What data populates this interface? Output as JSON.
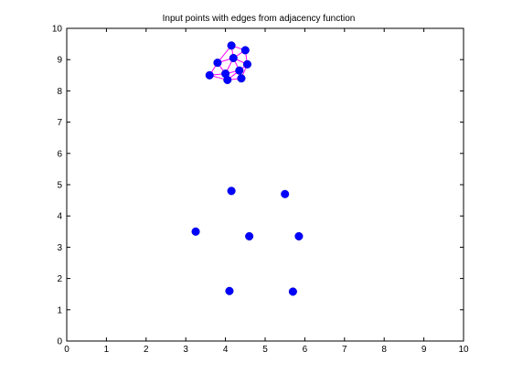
{
  "chart_data": {
    "type": "scatter",
    "title": "Input points with edges from adjacency function",
    "xlabel": "",
    "ylabel": "",
    "xlim": [
      0,
      10
    ],
    "ylim": [
      0,
      10
    ],
    "xticks": [
      0,
      1,
      2,
      3,
      4,
      5,
      6,
      7,
      8,
      9,
      10
    ],
    "yticks": [
      0,
      1,
      2,
      3,
      4,
      5,
      6,
      7,
      8,
      9,
      10
    ],
    "grid": false,
    "legend": "none",
    "point_color": "#0000ff",
    "edge_color": "#ff00ff",
    "points": [
      {
        "x": 3.6,
        "y": 8.5
      },
      {
        "x": 3.8,
        "y": 8.9
      },
      {
        "x": 4.0,
        "y": 8.55
      },
      {
        "x": 4.05,
        "y": 8.35
      },
      {
        "x": 4.15,
        "y": 9.45
      },
      {
        "x": 4.2,
        "y": 9.05
      },
      {
        "x": 4.35,
        "y": 8.65
      },
      {
        "x": 4.4,
        "y": 8.4
      },
      {
        "x": 4.5,
        "y": 9.3
      },
      {
        "x": 4.55,
        "y": 8.85
      },
      {
        "x": 4.15,
        "y": 4.8
      },
      {
        "x": 5.5,
        "y": 4.7
      },
      {
        "x": 3.25,
        "y": 3.5
      },
      {
        "x": 4.6,
        "y": 3.35
      },
      {
        "x": 5.85,
        "y": 3.35
      },
      {
        "x": 4.1,
        "y": 1.6
      },
      {
        "x": 5.7,
        "y": 1.58
      }
    ],
    "edges": [
      [
        0,
        1
      ],
      [
        0,
        2
      ],
      [
        0,
        3
      ],
      [
        1,
        2
      ],
      [
        1,
        4
      ],
      [
        1,
        5
      ],
      [
        2,
        3
      ],
      [
        2,
        5
      ],
      [
        2,
        6
      ],
      [
        3,
        7
      ],
      [
        3,
        6
      ],
      [
        4,
        5
      ],
      [
        4,
        8
      ],
      [
        5,
        6
      ],
      [
        5,
        8
      ],
      [
        5,
        9
      ],
      [
        6,
        7
      ],
      [
        6,
        9
      ],
      [
        7,
        9
      ],
      [
        8,
        9
      ]
    ]
  }
}
